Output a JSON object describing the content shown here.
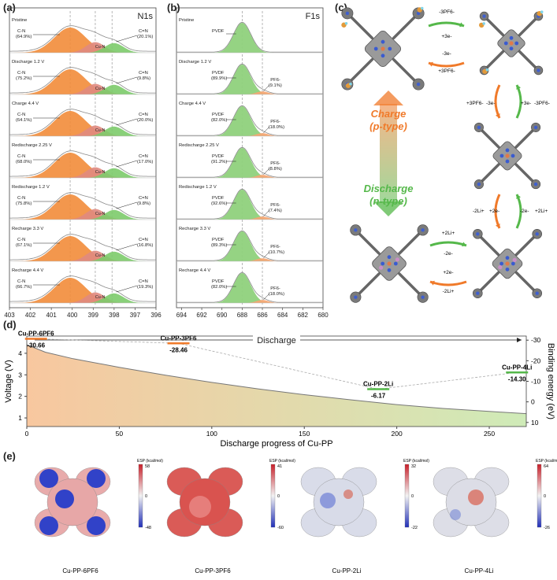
{
  "panel_labels": {
    "a": "(a)",
    "b": "(b)",
    "c": "(c)",
    "d": "(d)",
    "e": "(e)"
  },
  "colors": {
    "cn_fill": "#f28c3a",
    "cun_fill": "#e08a80",
    "ceqn_fill": "#7ccb6a",
    "pvdf_fill": "#8fd17c",
    "pf6_fill": "#f5a673",
    "charge_orange": "#f07a2a",
    "discharge_green": "#55b84a",
    "curve_gray": "#8a8a8a"
  },
  "chart_data": [
    {
      "type": "area",
      "panel": "a",
      "title": "N1s",
      "xlabel": "Binding energy (eV)",
      "xlim": [
        403,
        396
      ],
      "xticks": [
        "403",
        "402",
        "401",
        "400",
        "399",
        "398",
        "397",
        "396"
      ],
      "peak_positions_ev": {
        "C-N": 400.1,
        "Cu-N": 398.9,
        "C=N": 398.1
      },
      "peak_names": {
        "cn": "C-N",
        "cun": "Cu-N",
        "ceqn": "C=N"
      },
      "rows": [
        {
          "state": "Pristine",
          "cn": "(64.9%)",
          "ceqn": "(20.1%)"
        },
        {
          "state": "Discharge 1.2 V",
          "cn": "(75.2%)",
          "ceqn": "(9.8%)"
        },
        {
          "state": "Charge 4.4 V",
          "cn": "(64.1%)",
          "ceqn": "(20.0%)"
        },
        {
          "state": "Redischarge 2.25 V",
          "cn": "(68.0%)",
          "ceqn": "(17.0%)"
        },
        {
          "state": "Redischarge 1.2 V",
          "cn": "(75.8%)",
          "ceqn": "(9.8%)"
        },
        {
          "state": "Recharge 3.3 V",
          "cn": "(67.1%)",
          "ceqn": "(16.8%)"
        },
        {
          "state": "Recharge 4.4 V",
          "cn": "(66.7%)",
          "ceqn": "(19.3%)"
        }
      ]
    },
    {
      "type": "area",
      "panel": "b",
      "title": "F1s",
      "xlabel": "Binding energy (eV)",
      "xlim": [
        694.5,
        680
      ],
      "xticks": [
        "694",
        "692",
        "690",
        "688",
        "686",
        "684",
        "682",
        "680"
      ],
      "peak_positions_ev": {
        "PVDF": 688.0,
        "PF6-": 686.0
      },
      "peak_names": {
        "pvdf": "PVDF",
        "pf6": "PF6-"
      },
      "rows": [
        {
          "state": "Pristine",
          "pvdf": "",
          "pf6": ""
        },
        {
          "state": "Discharge 1.2 V",
          "pvdf": "(89.9%)",
          "pf6": "(9.1%)"
        },
        {
          "state": "Charge 4.4 V",
          "pvdf": "(82.0%)",
          "pf6": "(18.0%)"
        },
        {
          "state": "Redischarge 2.25 V",
          "pvdf": "(91.2%)",
          "pf6": "(8.8%)"
        },
        {
          "state": "Redischarge 1.2 V",
          "pvdf": "(92.6%)",
          "pf6": "(7.4%)"
        },
        {
          "state": "Recharge 3.3 V",
          "pvdf": "(89.3%)",
          "pf6": "(10.7%)"
        },
        {
          "state": "Recharge 4.4 V",
          "pvdf": "(82.0%)",
          "pf6": "(18.0%)"
        }
      ]
    },
    {
      "type": "area",
      "panel": "d",
      "title": "Discharge",
      "xlabel": "Discharge progress of Cu-PP",
      "ylabel": "Voltage (V)",
      "y2label": "Binding energy (eV)",
      "xlim": [
        0,
        270
      ],
      "ylim": [
        0.6,
        4.8
      ],
      "y2lim": [
        12,
        -32
      ],
      "xticks": [
        0,
        50,
        100,
        150,
        200,
        250
      ],
      "yticks": [
        1,
        2,
        3,
        4
      ],
      "y2ticks": [
        10,
        0,
        -10,
        -20,
        -30
      ],
      "voltage_curve": {
        "x": [
          0,
          10,
          25,
          50,
          75,
          100,
          125,
          150,
          175,
          200,
          225,
          250,
          270
        ],
        "y": [
          4.4,
          4.05,
          3.75,
          3.35,
          2.98,
          2.65,
          2.35,
          2.08,
          1.84,
          1.62,
          1.44,
          1.3,
          1.2
        ]
      },
      "binding_points": [
        {
          "name": "Cu-PP-6PF6",
          "x": 5,
          "energy": -30.66,
          "energy_label": "-30.66"
        },
        {
          "name": "Cu-PP-3PF6",
          "x": 82,
          "energy": -28.46,
          "energy_label": "-28.46"
        },
        {
          "name": "Cu-PP-2Li",
          "x": 190,
          "energy": -6.17,
          "energy_label": "-6.17"
        },
        {
          "name": "Cu-PP-4Li",
          "x": 265,
          "energy": -14.3,
          "energy_label": "-14.30"
        }
      ]
    }
  ],
  "panel_c": {
    "charge_label": "Charge",
    "charge_sub": "(p-type)",
    "discharge_label": "Discharge",
    "discharge_sub": "(n-type)",
    "top_arrows": {
      "a1": "-3PF6-",
      "a2": "+3e-",
      "a3": "-3e-",
      "a4": "+3PF6-"
    },
    "mid_upper": {
      "left1": "+3PF6-",
      "left2": "-3e-",
      "right1": "+3e-",
      "right2": "-3PF6-"
    },
    "mid_lower": {
      "left1": "-2Li+",
      "left2": "+2e-",
      "right1": "-2e-",
      "right2": "+2Li+"
    },
    "bottom_arrows": {
      "a1": "+2Li+",
      "a2": "-2e-",
      "a3": "+2e-",
      "a4": "-2Li+"
    }
  },
  "panel_e": {
    "colorbar_title": "ESP (kcal/mol)",
    "maps": [
      {
        "caption": "Cu-PP-6PF6",
        "max": "58",
        "mid": "0",
        "min": "-48"
      },
      {
        "caption": "Cu-PP-3PF6",
        "max": "41",
        "mid": "0",
        "min": "-60"
      },
      {
        "caption": "Cu-PP-2Li",
        "max": "32",
        "mid": "0",
        "min": "-22"
      },
      {
        "caption": "Cu-PP-4Li",
        "max": "64",
        "mid": "0",
        "min": "-26"
      }
    ]
  }
}
